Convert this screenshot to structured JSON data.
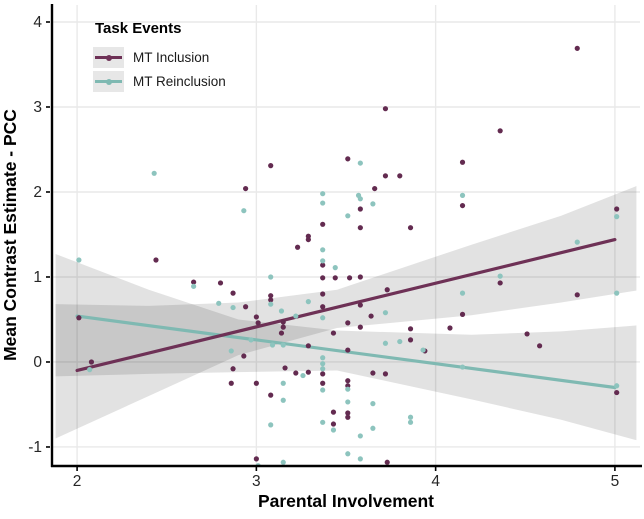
{
  "chart_data": {
    "type": "scatter",
    "title": "",
    "xlabel": "Parental Involvement",
    "ylabel": "Mean Contrast Estimate - PCC",
    "xlim": [
      1.86,
      5.14
    ],
    "ylim": [
      -1.212,
      4.2
    ],
    "xticks": [
      "2",
      "3",
      "4",
      "5"
    ],
    "xtick_values": [
      2,
      3,
      4,
      5
    ],
    "yticks": [
      "-1",
      "0",
      "1",
      "2",
      "3",
      "4"
    ],
    "ytick_values": [
      -1,
      0,
      1,
      2,
      3,
      4
    ],
    "grid": true,
    "colors": {
      "inclusion_point": "#632b50",
      "inclusion_line": "#6e3156",
      "reinclusion_point": "#8dc4be",
      "reinclusion_line": "#7fb9b2",
      "gridline": "#e9e9e9",
      "axis": "#000000",
      "ci_fill": "rgba(0,0,0,0.115)"
    },
    "legend": {
      "title": "Task Events",
      "position": "top-left",
      "items": [
        {
          "label": "MT Inclusion",
          "color": "#6e3156"
        },
        {
          "label": "MT Reinclusion",
          "color": "#7fb9b2"
        }
      ]
    },
    "series": [
      {
        "name": "MT Inclusion",
        "point_color": "#632b50",
        "line_color": "#6e3156",
        "regression": {
          "x1": 2.0,
          "y1": -0.1,
          "x2": 5.0,
          "y2": 1.44
        },
        "ci_upper": [
          [
            1.88,
            0.68
          ],
          [
            2.4,
            0.66
          ],
          [
            2.9,
            0.7
          ],
          [
            3.45,
            0.85
          ],
          [
            4.2,
            1.38
          ],
          [
            4.7,
            1.72
          ],
          [
            5.12,
            2.07
          ]
        ],
        "ci_lower": [
          [
            1.88,
            -0.9
          ],
          [
            2.4,
            -0.4
          ],
          [
            2.9,
            0.08
          ],
          [
            3.45,
            0.4
          ],
          [
            4.2,
            0.55
          ],
          [
            4.7,
            0.7
          ],
          [
            5.12,
            0.84
          ]
        ],
        "points": [
          [
            2.01,
            0.52
          ],
          [
            2.08,
            0.0
          ],
          [
            2.44,
            1.2
          ],
          [
            2.65,
            0.94
          ],
          [
            2.8,
            0.93
          ],
          [
            2.87,
            0.81
          ],
          [
            2.94,
            0.65
          ],
          [
            2.93,
            0.07
          ],
          [
            2.87,
            -0.08
          ],
          [
            2.94,
            2.04
          ],
          [
            3.72,
            2.98
          ],
          [
            3.08,
            2.31
          ],
          [
            3.51,
            2.39
          ],
          [
            3.72,
            2.19
          ],
          [
            3.8,
            2.19
          ],
          [
            3.66,
            2.04
          ],
          [
            3.58,
            1.8
          ],
          [
            3.37,
            1.62
          ],
          [
            3.58,
            1.58
          ],
          [
            3.86,
            1.58
          ],
          [
            3.29,
            1.48
          ],
          [
            3.29,
            1.44
          ],
          [
            3.23,
            1.35
          ],
          [
            3.37,
            1.14
          ],
          [
            3.37,
            0.99
          ],
          [
            3.44,
            0.99
          ],
          [
            3.52,
            0.99
          ],
          [
            3.58,
            1.0
          ],
          [
            3.73,
            0.85
          ],
          [
            3.08,
            0.78
          ],
          [
            3.08,
            0.73
          ],
          [
            3.37,
            0.8
          ],
          [
            3.37,
            0.65
          ],
          [
            3.58,
            0.67
          ],
          [
            3.64,
            0.54
          ],
          [
            3.51,
            0.46
          ],
          [
            3.0,
            0.53
          ],
          [
            3.01,
            0.46
          ],
          [
            3.15,
            0.47
          ],
          [
            3.15,
            0.41
          ],
          [
            3.14,
            0.34
          ],
          [
            3.58,
            0.41
          ],
          [
            3.43,
            0.34
          ],
          [
            3.29,
            0.19
          ],
          [
            3.51,
            0.14
          ],
          [
            3.86,
            0.39
          ],
          [
            3.86,
            0.26
          ],
          [
            4.08,
            0.4
          ],
          [
            3.94,
            0.13
          ],
          [
            3.16,
            -0.07
          ],
          [
            3.22,
            -0.13
          ],
          [
            3.29,
            -0.12
          ],
          [
            3.37,
            -0.14
          ],
          [
            3.37,
            -0.25
          ],
          [
            3.51,
            -0.22
          ],
          [
            3.51,
            -0.28
          ],
          [
            3.65,
            -0.13
          ],
          [
            3.72,
            -0.14
          ],
          [
            3.0,
            -0.25
          ],
          [
            2.86,
            -0.25
          ],
          [
            3.08,
            -0.39
          ],
          [
            3.43,
            -0.59
          ],
          [
            3.51,
            -0.6
          ],
          [
            3.51,
            -0.65
          ],
          [
            3.43,
            -0.73
          ],
          [
            3.0,
            -1.14
          ],
          [
            3.73,
            -1.18
          ],
          [
            4.15,
            2.35
          ],
          [
            4.36,
            2.72
          ],
          [
            4.15,
            1.84
          ],
          [
            4.15,
            0.56
          ],
          [
            4.51,
            0.33
          ],
          [
            4.58,
            0.19
          ],
          [
            4.36,
            0.93
          ],
          [
            4.79,
            3.69
          ],
          [
            4.79,
            0.79
          ],
          [
            5.01,
            1.8
          ],
          [
            5.01,
            -0.36
          ]
        ]
      },
      {
        "name": "MT Reinclusion",
        "point_color": "#8dc4be",
        "line_color": "#7fb9b2",
        "regression": {
          "x1": 2.0,
          "y1": 0.54,
          "x2": 5.0,
          "y2": -0.3
        },
        "ci_upper": [
          [
            1.88,
            1.27
          ],
          [
            2.4,
            0.85
          ],
          [
            2.9,
            0.5
          ],
          [
            3.45,
            0.37
          ],
          [
            4.2,
            0.32
          ],
          [
            4.7,
            0.36
          ],
          [
            5.12,
            0.43
          ]
        ],
        "ci_lower": [
          [
            1.88,
            -0.17
          ],
          [
            2.4,
            -0.14
          ],
          [
            2.9,
            -0.12
          ],
          [
            3.45,
            -0.1
          ],
          [
            4.2,
            -0.44
          ],
          [
            4.7,
            -0.68
          ],
          [
            5.12,
            -0.92
          ]
        ],
        "points": [
          [
            2.01,
            1.2
          ],
          [
            2.07,
            -0.09
          ],
          [
            2.43,
            2.22
          ],
          [
            2.65,
            0.89
          ],
          [
            2.79,
            0.69
          ],
          [
            2.87,
            0.64
          ],
          [
            2.86,
            0.13
          ],
          [
            2.93,
            1.78
          ],
          [
            2.97,
            0.26
          ],
          [
            3.08,
            1.0
          ],
          [
            3.08,
            0.68
          ],
          [
            3.14,
            0.6
          ],
          [
            3.22,
            0.54
          ],
          [
            3.37,
            0.52
          ],
          [
            3.37,
            1.32
          ],
          [
            3.37,
            1.19
          ],
          [
            3.44,
            1.11
          ],
          [
            3.37,
            1.98
          ],
          [
            3.37,
            1.87
          ],
          [
            3.57,
            1.96
          ],
          [
            3.58,
            1.92
          ],
          [
            3.65,
            1.86
          ],
          [
            3.51,
            1.72
          ],
          [
            3.58,
            2.34
          ],
          [
            3.72,
            0.58
          ],
          [
            3.72,
            0.22
          ],
          [
            3.8,
            0.24
          ],
          [
            3.93,
            0.14
          ],
          [
            3.09,
            0.2
          ],
          [
            3.15,
            0.2
          ],
          [
            3.26,
            -0.16
          ],
          [
            3.15,
            -0.25
          ],
          [
            3.15,
            -0.45
          ],
          [
            3.37,
            0.05
          ],
          [
            3.37,
            -0.02
          ],
          [
            3.37,
            -0.08
          ],
          [
            3.37,
            -0.33
          ],
          [
            3.51,
            -0.32
          ],
          [
            3.51,
            -0.47
          ],
          [
            3.65,
            -0.49
          ],
          [
            3.65,
            -0.78
          ],
          [
            3.37,
            -0.71
          ],
          [
            3.43,
            -0.8
          ],
          [
            3.08,
            -0.74
          ],
          [
            3.29,
            0.71
          ],
          [
            3.86,
            -0.65
          ],
          [
            3.86,
            -0.71
          ],
          [
            3.58,
            -0.87
          ],
          [
            3.51,
            -1.08
          ],
          [
            3.15,
            -1.18
          ],
          [
            3.58,
            -1.14
          ],
          [
            3.01,
            -1.22
          ],
          [
            4.15,
            1.96
          ],
          [
            4.15,
            0.81
          ],
          [
            4.15,
            -0.06
          ],
          [
            4.36,
            1.01
          ],
          [
            4.79,
            1.41
          ],
          [
            5.01,
            1.71
          ],
          [
            5.01,
            0.81
          ],
          [
            5.01,
            -0.28
          ]
        ]
      }
    ]
  }
}
